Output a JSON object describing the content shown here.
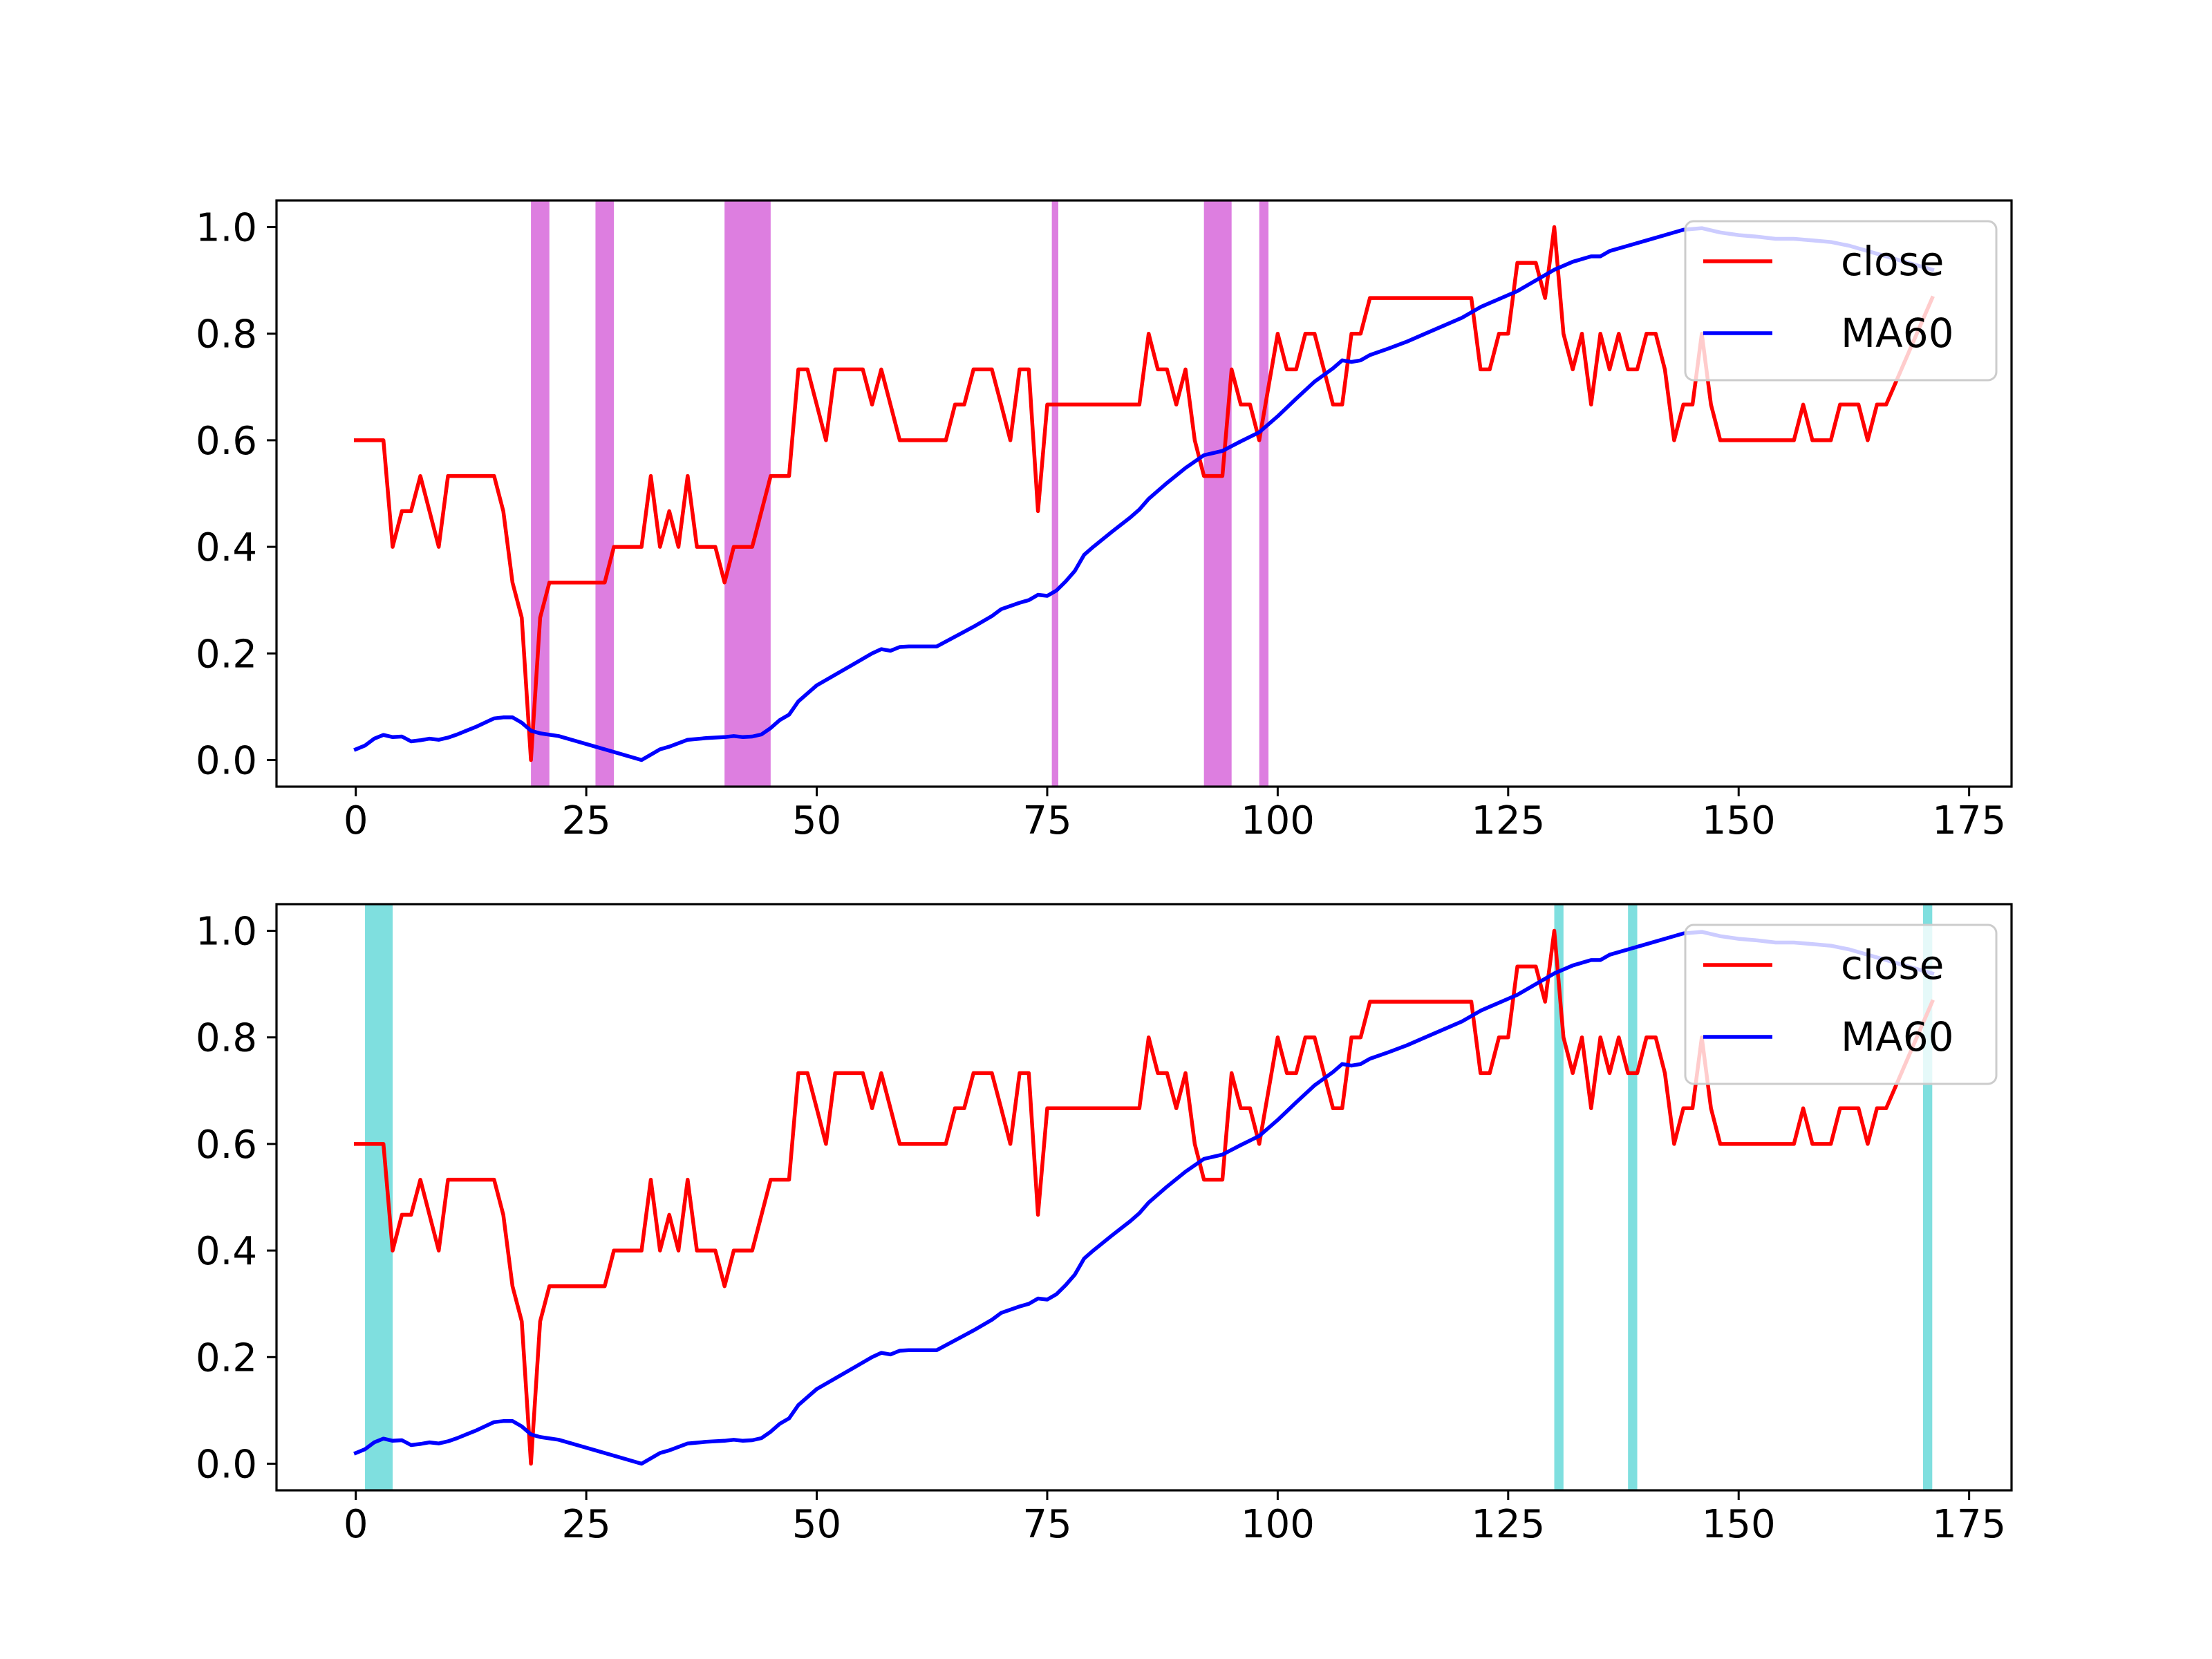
{
  "colors": {
    "close": "#ff0000",
    "ma60": "#0000ff",
    "top_shade": "#dd7ee0",
    "bottom_shade": "#7fdfdf"
  },
  "chart_data": [
    {
      "type": "line",
      "title": "",
      "xlabel": "",
      "ylabel": "",
      "xlim": [
        -8.6,
        179.6
      ],
      "ylim": [
        -0.05,
        1.05
      ],
      "xticks": [
        "0",
        "25",
        "50",
        "75",
        "100",
        "125",
        "150",
        "175"
      ],
      "yticks": [
        "0.0",
        "0.2",
        "0.4",
        "0.6",
        "0.8",
        "1.0"
      ],
      "legend": {
        "placement": "top-right",
        "entries": [
          "close",
          "MA60"
        ]
      },
      "grid": false,
      "shaded_spans": [
        [
          19,
          21
        ],
        [
          26,
          28
        ],
        [
          40,
          45
        ],
        [
          75.5,
          76.2
        ],
        [
          92,
          95
        ],
        [
          98,
          99
        ]
      ],
      "shade_color": "#dd7ee0",
      "series": [
        {
          "name": "close",
          "color": "#ff0000",
          "x": [
            0,
            3,
            4,
            5,
            6,
            7,
            9,
            10,
            15,
            16,
            17,
            18,
            19,
            20,
            21,
            27,
            28,
            31,
            32,
            33,
            34,
            35,
            36,
            37,
            39,
            40,
            41,
            43,
            45,
            47,
            48,
            49,
            50,
            51,
            52,
            53,
            55,
            56,
            57,
            58,
            59,
            61,
            64,
            65,
            66,
            67,
            69,
            70,
            71,
            72,
            73,
            74,
            75,
            76,
            85,
            86,
            87,
            88,
            89,
            90,
            91,
            92,
            94,
            95,
            96,
            97,
            98,
            100,
            101,
            102,
            103,
            104,
            106,
            107,
            108,
            109,
            110,
            111,
            121,
            122,
            123,
            124,
            125,
            126,
            128,
            129,
            130,
            131,
            132,
            133,
            134,
            135,
            136,
            137,
            138,
            139,
            140,
            141,
            142,
            143,
            144,
            145,
            146,
            147,
            148,
            149,
            156,
            157,
            158,
            160,
            161,
            163,
            164,
            165,
            166,
            171
          ],
          "values": [
            0.6,
            0.6,
            0.4,
            0.467,
            0.467,
            0.533,
            0.4,
            0.533,
            0.533,
            0.467,
            0.333,
            0.267,
            0.0,
            0.267,
            0.333,
            0.333,
            0.4,
            0.4,
            0.533,
            0.4,
            0.467,
            0.4,
            0.533,
            0.4,
            0.4,
            0.333,
            0.4,
            0.4,
            0.533,
            0.533,
            0.733,
            0.733,
            0.667,
            0.6,
            0.733,
            0.733,
            0.733,
            0.667,
            0.733,
            0.667,
            0.6,
            0.6,
            0.6,
            0.667,
            0.667,
            0.733,
            0.733,
            0.667,
            0.6,
            0.733,
            0.733,
            0.467,
            0.667,
            0.667,
            0.667,
            0.8,
            0.733,
            0.733,
            0.667,
            0.733,
            0.6,
            0.533,
            0.533,
            0.733,
            0.667,
            0.667,
            0.6,
            0.8,
            0.733,
            0.733,
            0.8,
            0.8,
            0.667,
            0.667,
            0.8,
            0.8,
            0.867,
            0.867,
            0.867,
            0.733,
            0.733,
            0.8,
            0.8,
            0.933,
            0.933,
            0.867,
            1.0,
            0.8,
            0.733,
            0.8,
            0.667,
            0.8,
            0.733,
            0.8,
            0.733,
            0.733,
            0.8,
            0.8,
            0.733,
            0.6,
            0.667,
            0.667,
            0.8,
            0.667,
            0.6,
            0.6,
            0.6,
            0.667,
            0.6,
            0.6,
            0.667,
            0.667,
            0.6,
            0.667,
            0.667,
            0.867
          ]
        },
        {
          "name": "MA60",
          "color": "#0000ff",
          "x": [
            0,
            1,
            2,
            3,
            4,
            5,
            6,
            7,
            8,
            9,
            10,
            11,
            12,
            13,
            14,
            15,
            16,
            17,
            18,
            19,
            20,
            22,
            24,
            26,
            28,
            31,
            32,
            33,
            34,
            36,
            38,
            40,
            41,
            42,
            43,
            44,
            45,
            46,
            47,
            48,
            49,
            50,
            52,
            54,
            56,
            57,
            58,
            59,
            60,
            63,
            67,
            69,
            70,
            72,
            73,
            74,
            75,
            76,
            77,
            78,
            79,
            80,
            82,
            84,
            85,
            86,
            88,
            90,
            92,
            93,
            94,
            96,
            98,
            100,
            102,
            104,
            106,
            107,
            108,
            109,
            110,
            112,
            114,
            116,
            118,
            120,
            122,
            124,
            126,
            128,
            130,
            132,
            134,
            135,
            136,
            138,
            140,
            142,
            144,
            146,
            148,
            150,
            152,
            154,
            156,
            158,
            160,
            162,
            164,
            166,
            168,
            170,
            171
          ],
          "values": [
            0.02,
            0.027,
            0.04,
            0.047,
            0.043,
            0.044,
            0.035,
            0.037,
            0.04,
            0.038,
            0.042,
            0.048,
            0.055,
            0.062,
            0.07,
            0.078,
            0.08,
            0.08,
            0.07,
            0.055,
            0.05,
            0.045,
            0.035,
            0.025,
            0.015,
            0.0,
            0.01,
            0.02,
            0.025,
            0.038,
            0.041,
            0.043,
            0.045,
            0.043,
            0.044,
            0.048,
            0.06,
            0.075,
            0.085,
            0.11,
            0.125,
            0.14,
            0.16,
            0.18,
            0.2,
            0.208,
            0.205,
            0.212,
            0.213,
            0.213,
            0.25,
            0.27,
            0.283,
            0.295,
            0.3,
            0.31,
            0.308,
            0.318,
            0.335,
            0.355,
            0.385,
            0.4,
            0.428,
            0.455,
            0.47,
            0.49,
            0.52,
            0.548,
            0.572,
            0.576,
            0.58,
            0.598,
            0.615,
            0.645,
            0.678,
            0.71,
            0.735,
            0.75,
            0.747,
            0.75,
            0.76,
            0.772,
            0.785,
            0.8,
            0.815,
            0.83,
            0.85,
            0.865,
            0.88,
            0.9,
            0.92,
            0.935,
            0.945,
            0.945,
            0.955,
            0.965,
            0.975,
            0.985,
            0.995,
            0.998,
            0.99,
            0.985,
            0.982,
            0.978,
            0.978,
            0.975,
            0.972,
            0.965,
            0.955,
            0.945,
            0.935,
            0.925,
            0.92
          ]
        }
      ]
    },
    {
      "type": "line",
      "title": "",
      "xlabel": "",
      "ylabel": "",
      "xlim": [
        -8.6,
        179.6
      ],
      "ylim": [
        -0.05,
        1.05
      ],
      "xticks": [
        "0",
        "25",
        "50",
        "75",
        "100",
        "125",
        "150",
        "175"
      ],
      "yticks": [
        "0.0",
        "0.2",
        "0.4",
        "0.6",
        "0.8",
        "1.0"
      ],
      "legend": {
        "placement": "top-right",
        "entries": [
          "close",
          "MA60"
        ]
      },
      "grid": false,
      "shaded_spans": [
        [
          1,
          4
        ],
        [
          130,
          131
        ],
        [
          138,
          139
        ],
        [
          170,
          171
        ]
      ],
      "shade_color": "#7fdfdf",
      "series_same_as_top": true
    }
  ]
}
